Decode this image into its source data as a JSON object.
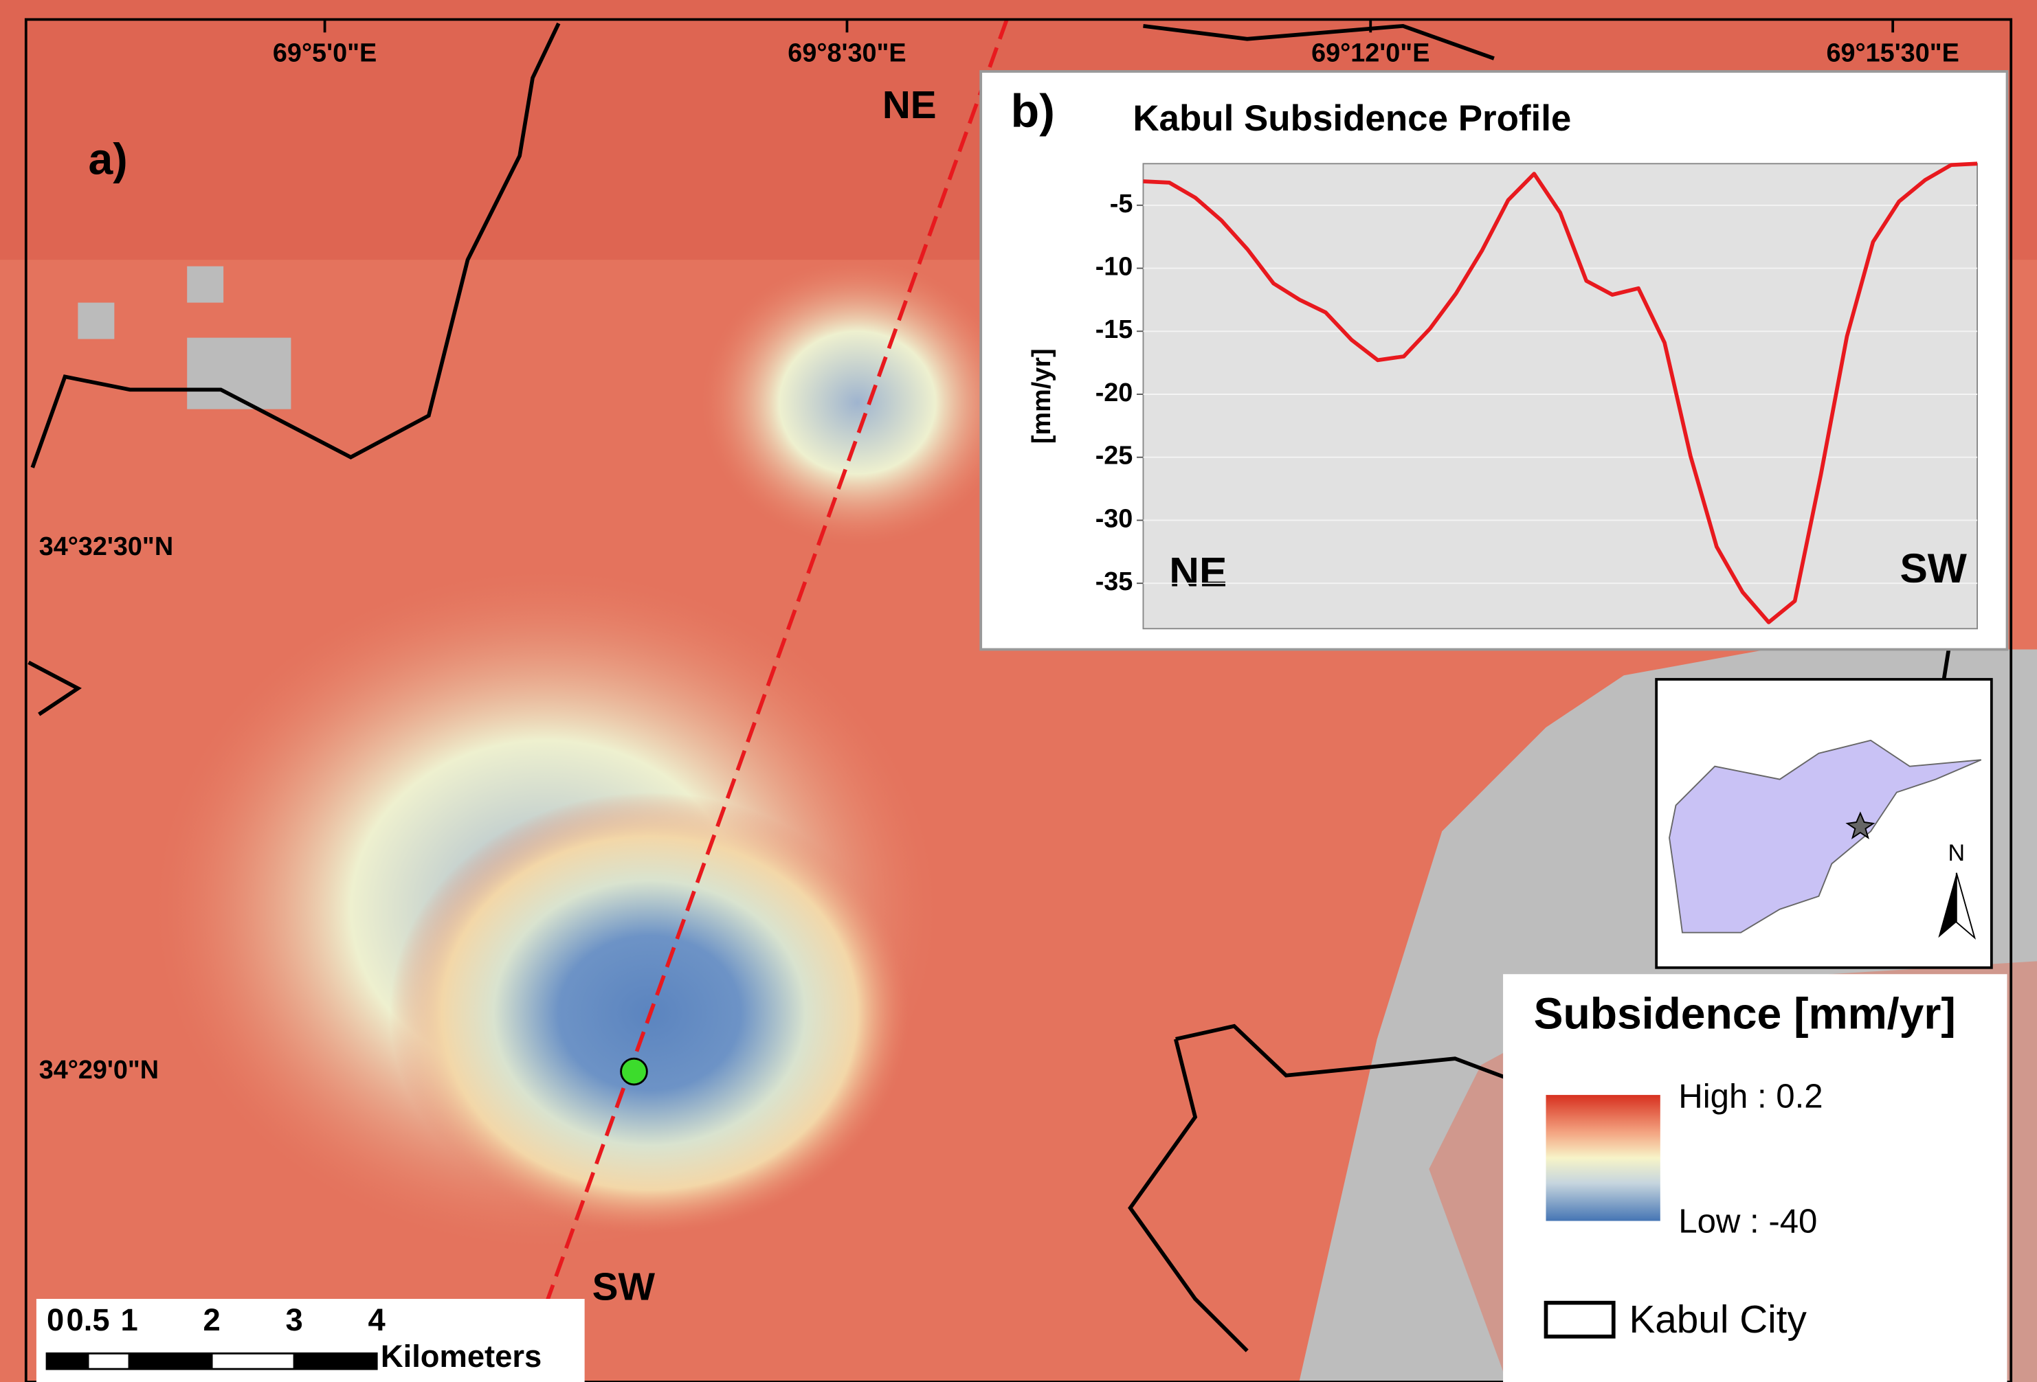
{
  "map": {
    "panel_label": "a)",
    "lon_labels": [
      "69°5'0\"E",
      "69°8'30\"E",
      "69°12'0\"E",
      "69°15'30\"E"
    ],
    "lat_labels": [
      "34°32'30\"N",
      "34°29'0\"N"
    ],
    "profile_start": "NE",
    "profile_end": "SW",
    "scale_bar": {
      "ticks": [
        0,
        0.5,
        1,
        2,
        3,
        4
      ],
      "unit": "Kilometers"
    },
    "legend": {
      "title": "Subsidence [mm/yr]",
      "high": "High : 0.2",
      "low": "Low : -40",
      "boundary": "Kabul City"
    },
    "north": "N"
  },
  "chart_data": {
    "type": "line",
    "panel_label": "b)",
    "title": "Kabul Subsidence Profile",
    "y_label": "[mm/yr]",
    "annotations": [
      "NE",
      "SW"
    ],
    "series": [
      {
        "color": "#e8191e",
        "values": [
          -3.1,
          -3.2,
          -4.4,
          -6.2,
          -8.5,
          -11.2,
          -12.5,
          -13.5,
          -15.7,
          -17.3,
          -17.0,
          -14.8,
          -12.0,
          -8.6,
          -4.6,
          -2.5,
          -5.6,
          -11.0,
          -12.1,
          -11.6,
          -15.9,
          -24.9,
          -32.1,
          -35.7,
          -38.1,
          -36.4,
          -26.4,
          -15.4,
          -7.9,
          -4.7,
          -3.0,
          -1.8,
          -1.7
        ]
      }
    ],
    "ylim": [
      -38.6,
      -1.7
    ],
    "yticks": [
      -5,
      -10,
      -15,
      -20,
      -25,
      -30,
      -35
    ],
    "grid": true
  }
}
